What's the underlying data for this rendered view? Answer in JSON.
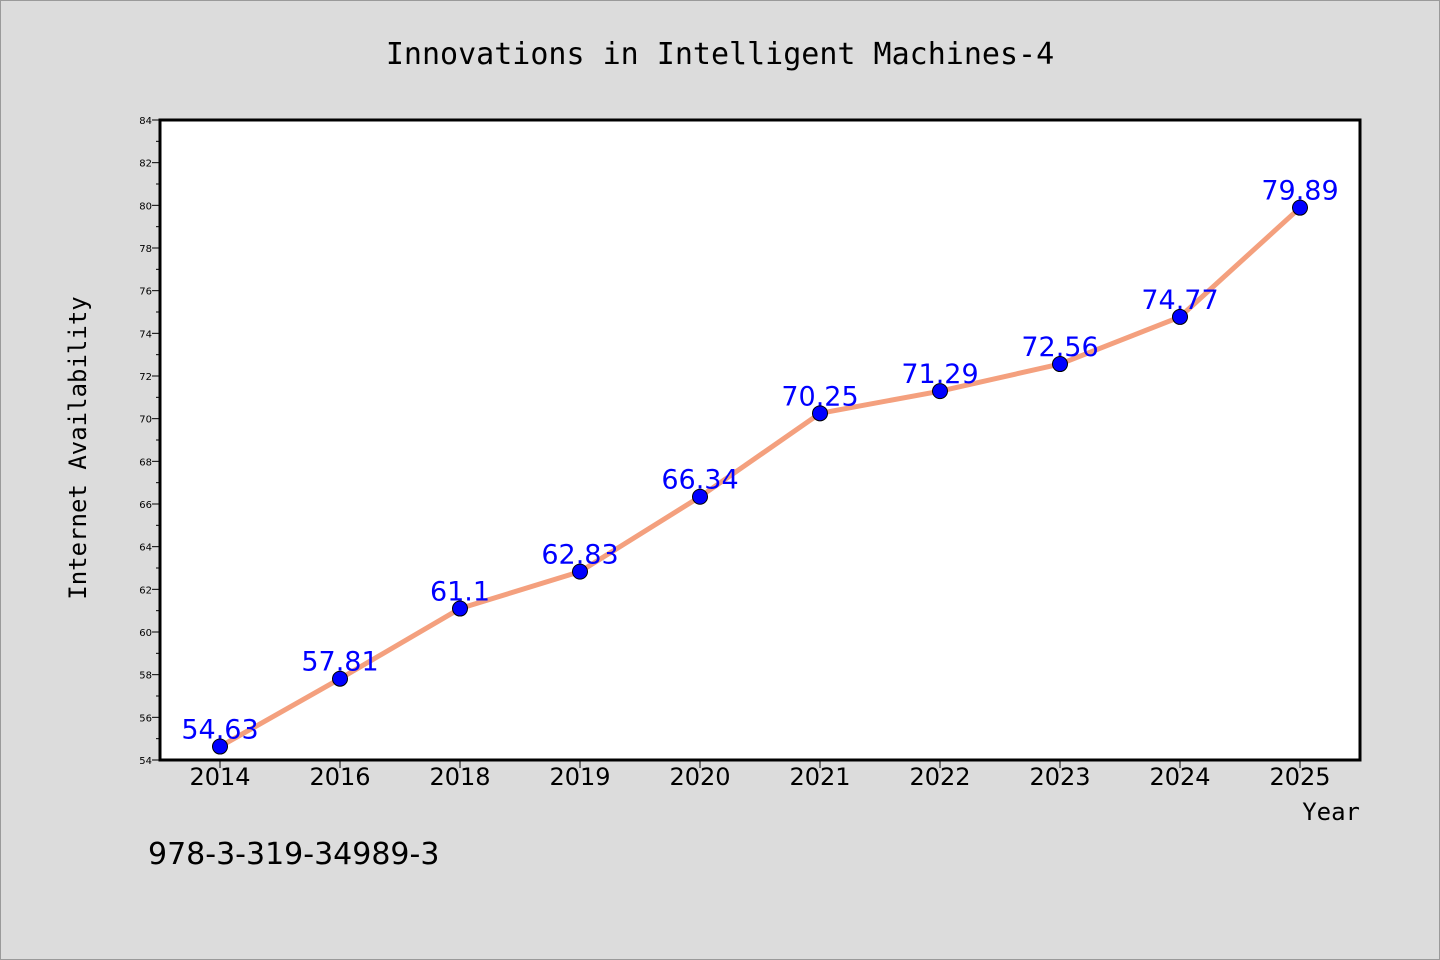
{
  "chart_data": {
    "type": "line",
    "title": "Innovations in Intelligent Machines-4",
    "xlabel": "Year",
    "ylabel": "Internet Availability",
    "categories": [
      "2014",
      "2016",
      "2018",
      "2019",
      "2020",
      "2021",
      "2022",
      "2023",
      "2024",
      "2025"
    ],
    "series": [
      {
        "values": [
          54.63,
          57.81,
          61.1,
          62.83,
          66.34,
          70.25,
          71.29,
          72.56,
          74.77,
          79.89
        ]
      }
    ],
    "data_labels": [
      "54.63",
      "57.81",
      "61.1",
      "62.83",
      "66.34",
      "70.25",
      "71.29",
      "72.56",
      "74.77",
      "79.89"
    ],
    "ylim": [
      54,
      84
    ],
    "yticks": [
      54,
      56,
      58,
      60,
      62,
      64,
      66,
      68,
      70,
      72,
      74,
      76,
      78,
      80,
      82,
      84
    ],
    "grid": false,
    "legend": "none",
    "colors": {
      "line": "#f4a07e",
      "marker": "#0000ff",
      "label": "#0000ff",
      "background": "#dcdcdc",
      "plot": "#ffffff"
    }
  },
  "footer_text": "978-3-319-34989-3"
}
